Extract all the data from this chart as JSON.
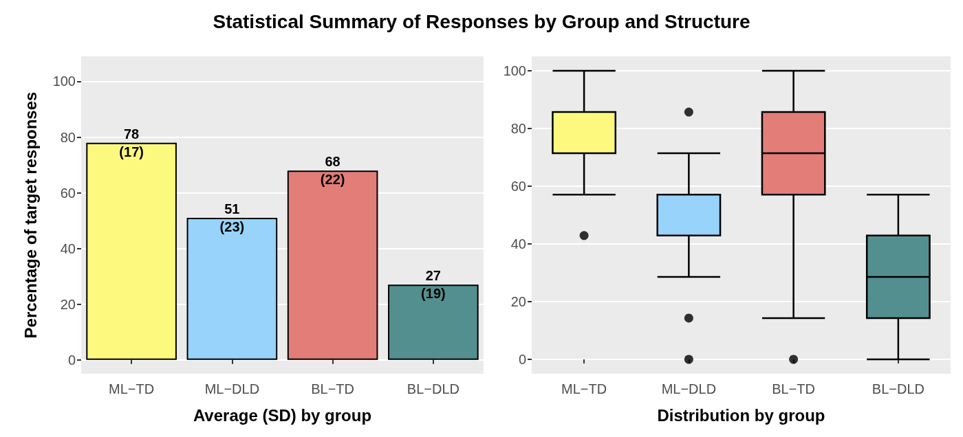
{
  "chart_data": [
    {
      "type": "bar",
      "title": "Statistical Summary of Responses by Group and Structure",
      "xlabel": "Average (SD) by group",
      "ylabel": "Percentage of target responses",
      "categories": [
        "ML−TD",
        "ML−DLD",
        "BL−TD",
        "BL−DLD"
      ],
      "values": [
        78,
        51,
        68,
        27
      ],
      "colors": [
        "#fdf87e",
        "#97d3fa",
        "#e27d78",
        "#548f8f"
      ],
      "value_labels": [
        "78\n(17)",
        "51\n(23)",
        "68\n(22)",
        "27\n(19)"
      ],
      "ylim": [
        -5,
        109
      ],
      "yticks": [
        0,
        20,
        40,
        60,
        80,
        100
      ],
      "grid": true
    },
    {
      "type": "box",
      "xlabel": "Distribution by group",
      "categories": [
        "ML−TD",
        "ML−DLD",
        "BL−TD",
        "BL−DLD"
      ],
      "colors": [
        "#fdf87e",
        "#97d3fa",
        "#e27d78",
        "#548f8f"
      ],
      "boxes": [
        {
          "low": 57.1,
          "q1": 71.4,
          "median": 71.4,
          "q3": 85.7,
          "high": 100,
          "outliers": [
            42.9
          ]
        },
        {
          "low": 28.6,
          "q1": 42.9,
          "median": 57.1,
          "q3": 57.1,
          "high": 71.4,
          "outliers": [
            85.7,
            14.3,
            0
          ]
        },
        {
          "low": 14.3,
          "q1": 57.1,
          "median": 71.4,
          "q3": 85.7,
          "high": 100,
          "outliers": [
            0
          ]
        },
        {
          "low": 0,
          "q1": 14.3,
          "median": 28.6,
          "q3": 42.9,
          "high": 57.1
        }
      ],
      "ylim": [
        -5,
        105
      ],
      "yticks": [
        0,
        20,
        40,
        60,
        80,
        100
      ],
      "grid": true
    }
  ]
}
